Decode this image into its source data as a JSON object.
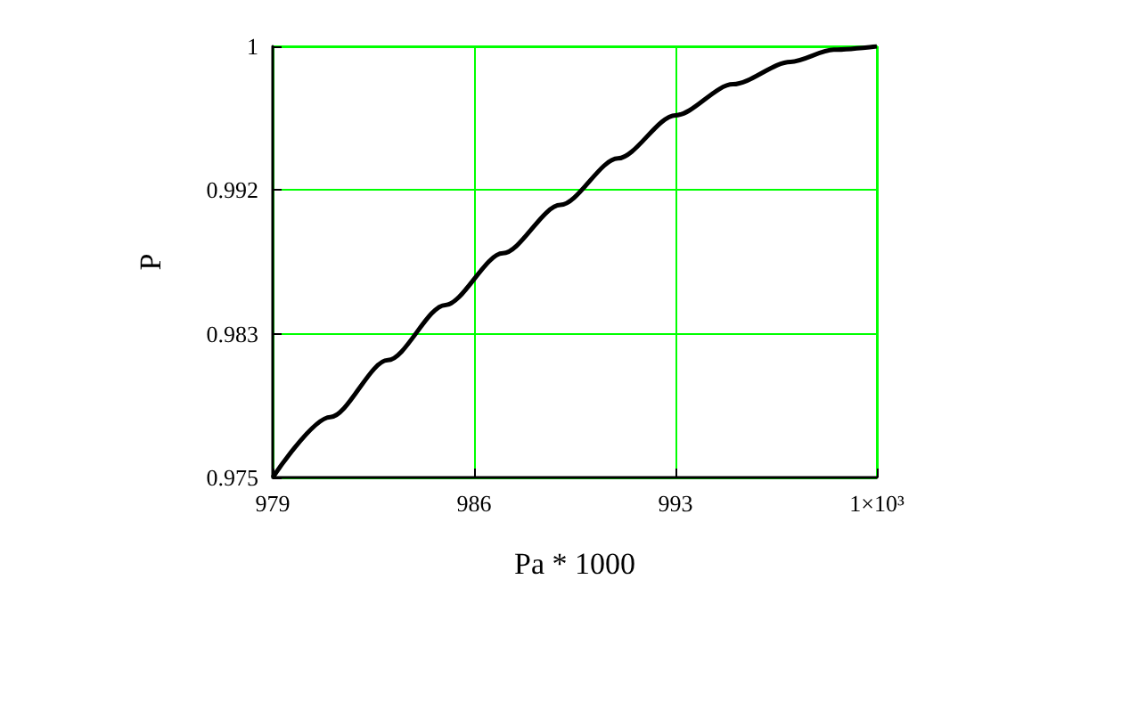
{
  "chart_data": {
    "type": "line",
    "xlabel": "Pa * 1000",
    "ylabel": "P",
    "x": [
      979,
      981,
      983,
      985,
      987,
      989,
      991,
      993,
      995,
      997,
      998.5,
      1000
    ],
    "series": [
      {
        "color": "#000000",
        "values": [
          0.975,
          0.9785,
          0.9818,
          0.985,
          0.988,
          0.9908,
          0.9935,
          0.996,
          0.9978,
          0.9991,
          0.9998,
          1.0
        ]
      }
    ],
    "xlim": [
      979,
      1000
    ],
    "xticks": [
      979,
      986,
      993,
      {
        "value": 1000,
        "label": "1×10³"
      }
    ],
    "ylim": [
      0.975,
      1
    ],
    "yticks": [
      "0.975",
      {
        "value": 0.98333,
        "label": "0.983"
      },
      {
        "value": 0.99167,
        "label": "0.992"
      },
      {
        "value": 1,
        "label": "1"
      }
    ],
    "grid": true,
    "marker": "none",
    "line_style": "solid"
  }
}
